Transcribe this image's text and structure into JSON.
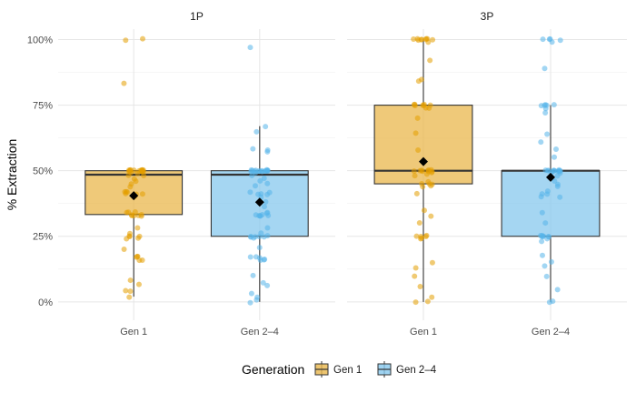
{
  "chart_data": {
    "type": "box",
    "ylabel": "% Extraction",
    "xlabel": "",
    "ylim": [
      -7,
      104
    ],
    "y_ticks": [
      "0%",
      "25%",
      "50%",
      "75%",
      "100%"
    ],
    "y_tick_values": [
      0,
      25,
      50,
      75,
      100
    ],
    "categories": [
      "Gen 1",
      "Gen 2–4"
    ],
    "legend": {
      "title": "Generation",
      "position": "bottom",
      "entries": [
        "Gen 1",
        "Gen 2–4"
      ]
    },
    "colors": {
      "Gen 1": {
        "fill": "#E9B74C",
        "point": "#E39E00"
      },
      "Gen 2–4": {
        "fill": "#87C8EE",
        "point": "#56B4E9"
      }
    },
    "grid": true,
    "panels": [
      {
        "label": "1P",
        "groups": [
          {
            "category": "Gen 1",
            "box": {
              "whisker_low": 2,
              "q1": 33.3,
              "median": 48.5,
              "q3": 50,
              "whisker_high": 50
            },
            "mean": 40.5,
            "points": [
              100,
              100,
              83,
              50,
              50,
              50,
              50,
              50,
              50,
              50,
              50,
              50,
              50,
              50,
              50,
              50,
              50,
              50,
              50,
              49,
              49,
              48,
              48,
              47,
              46,
              45,
              44,
              42,
              42,
              42,
              41,
              41,
              41,
              40,
              34,
              34,
              34,
              33,
              33,
              33,
              33,
              33,
              33,
              28,
              26,
              25,
              25,
              25,
              24,
              24,
              20,
              17,
              17,
              17,
              16,
              16,
              8,
              7,
              4,
              4,
              2
            ]
          },
          {
            "category": "Gen 2–4",
            "box": {
              "whisker_low": 0,
              "q1": 25,
              "median": 48.5,
              "q3": 50,
              "whisker_high": 67
            },
            "mean": 38,
            "points": [
              97,
              67,
              65,
              58,
              58,
              57,
              50,
              50,
              50,
              50,
              50,
              50,
              50,
              50,
              50,
              50,
              50,
              50,
              50,
              50,
              50,
              49,
              48,
              47,
              46,
              45,
              44,
              42,
              42,
              41,
              41,
              41,
              40,
              38,
              36,
              34,
              34,
              33,
              33,
              33,
              33,
              33,
              33,
              28,
              26,
              25,
              25,
              25,
              25,
              25,
              25,
              24,
              21,
              17,
              17,
              17,
              16,
              16,
              16,
              10,
              7,
              6,
              3,
              2,
              1,
              0
            ]
          }
        ]
      },
      {
        "label": "3P",
        "groups": [
          {
            "category": "Gen 1",
            "box": {
              "whisker_low": 0,
              "q1": 45,
              "median": 50,
              "q3": 75,
              "whisker_high": 100
            },
            "mean": 53.5,
            "points": [
              100,
              100,
              100,
              100,
              100,
              100,
              100,
              100,
              100,
              99,
              92,
              85,
              84,
              75,
              75,
              75,
              75,
              75,
              75,
              75,
              74,
              74,
              70,
              64,
              58,
              50,
              50,
              50,
              50,
              50,
              50,
              50,
              50,
              50,
              49,
              49,
              48,
              46,
              45,
              45,
              45,
              44,
              44,
              41,
              35,
              33,
              30,
              25,
              25,
              25,
              25,
              24,
              24,
              15,
              13,
              10,
              6,
              2,
              0,
              0
            ]
          },
          {
            "category": "Gen 2–4",
            "box": {
              "whisker_low": 0,
              "q1": 25,
              "median": 50,
              "q3": 50,
              "whisker_high": 75
            },
            "mean": 47.5,
            "points": [
              100,
              100,
              100,
              100,
              99,
              89,
              75,
              75,
              75,
              75,
              75,
              74,
              72,
              64,
              61,
              58,
              55,
              50,
              50,
              50,
              50,
              50,
              50,
              50,
              50,
              50,
              50,
              50,
              49,
              49,
              48,
              46,
              45,
              44,
              42,
              41,
              41,
              40,
              40,
              34,
              30,
              25,
              25,
              25,
              25,
              25,
              25,
              25,
              24,
              23,
              18,
              15,
              14,
              10,
              5,
              0,
              0
            ]
          }
        ]
      }
    ]
  }
}
